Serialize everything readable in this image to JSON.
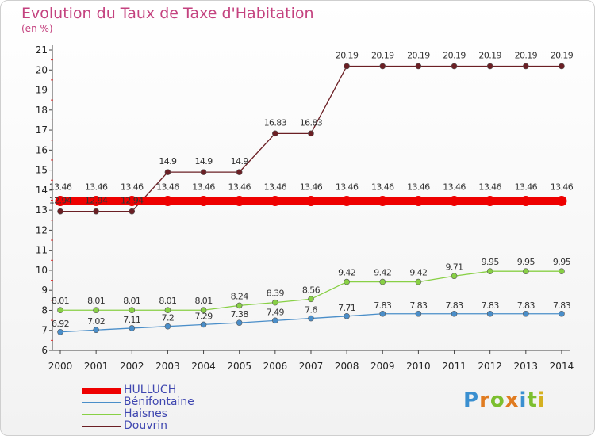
{
  "chart_data": {
    "type": "line",
    "title": "Evolution du Taux de Taxe d'Habitation",
    "ylabel": "(en %)",
    "xlabel": "",
    "x": [
      "2000",
      "2001",
      "2002",
      "2003",
      "2004",
      "2005",
      "2006",
      "2007",
      "2008",
      "2009",
      "2010",
      "2011",
      "2012",
      "2013",
      "2014"
    ],
    "ylim": [
      6,
      21
    ],
    "yticks": [
      6,
      7,
      8,
      9,
      10,
      11,
      12,
      13,
      14,
      15,
      16,
      17,
      18,
      19,
      20,
      21
    ],
    "grid": false,
    "legend_position": "bottom-left",
    "series": [
      {
        "name": "HULLUCH",
        "color": "#ee0000",
        "values": [
          13.46,
          13.46,
          13.46,
          13.46,
          13.46,
          13.46,
          13.46,
          13.46,
          13.46,
          13.46,
          13.46,
          13.46,
          13.46,
          13.46,
          13.46
        ],
        "labels": [
          "13.46",
          "13.46",
          "13.46",
          "13.46",
          "13.46",
          "13.46",
          "13.46",
          "13.46",
          "13.46",
          "13.46",
          "13.46",
          "13.46",
          "13.46",
          "13.46",
          "13.46"
        ]
      },
      {
        "name": "Bénifontaine",
        "color": "#4a8ec9",
        "values": [
          6.92,
          7.02,
          7.11,
          7.2,
          7.29,
          7.38,
          7.49,
          7.6,
          7.71,
          7.83,
          7.83,
          7.83,
          7.83,
          7.83,
          7.83
        ],
        "labels": [
          "6.92",
          "7.02",
          "7.11",
          "7.2",
          "7.29",
          "7.38",
          "7.49",
          "7.6",
          "7.71",
          "7.83",
          "7.83",
          "7.83",
          "7.83",
          "7.83",
          "7.83"
        ]
      },
      {
        "name": "Haisnes",
        "color": "#88d045",
        "values": [
          8.01,
          8.01,
          8.01,
          8.01,
          8.01,
          8.24,
          8.39,
          8.56,
          9.42,
          9.42,
          9.42,
          9.71,
          9.95,
          9.95,
          9.95
        ],
        "labels": [
          "8.01",
          "8.01",
          "8.01",
          "8.01",
          "8.01",
          "8.24",
          "8.39",
          "8.56",
          "9.42",
          "9.42",
          "9.42",
          "9.71",
          "9.95",
          "9.95",
          "9.95"
        ]
      },
      {
        "name": "Douvrin",
        "color": "#6b1f24",
        "values": [
          12.94,
          12.94,
          12.94,
          14.9,
          14.9,
          14.9,
          16.83,
          16.83,
          20.19,
          20.19,
          20.19,
          20.19,
          20.19,
          20.19,
          20.19
        ],
        "labels": [
          "12.94",
          "12.94",
          "12.94",
          "14.9",
          "14.9",
          "14.9",
          "16.83",
          "16.83",
          "20.19",
          "20.19",
          "20.19",
          "20.19",
          "20.19",
          "20.19",
          "20.19"
        ]
      }
    ]
  },
  "logo": {
    "letters": [
      "P",
      "r",
      "o",
      "x",
      "i",
      "t",
      "i"
    ],
    "colors": [
      "#3a8fd0",
      "#e07b20",
      "#7cbf2f",
      "#e07b20",
      "#3a8fd0",
      "#7cbf2f",
      "#d4b020"
    ]
  }
}
